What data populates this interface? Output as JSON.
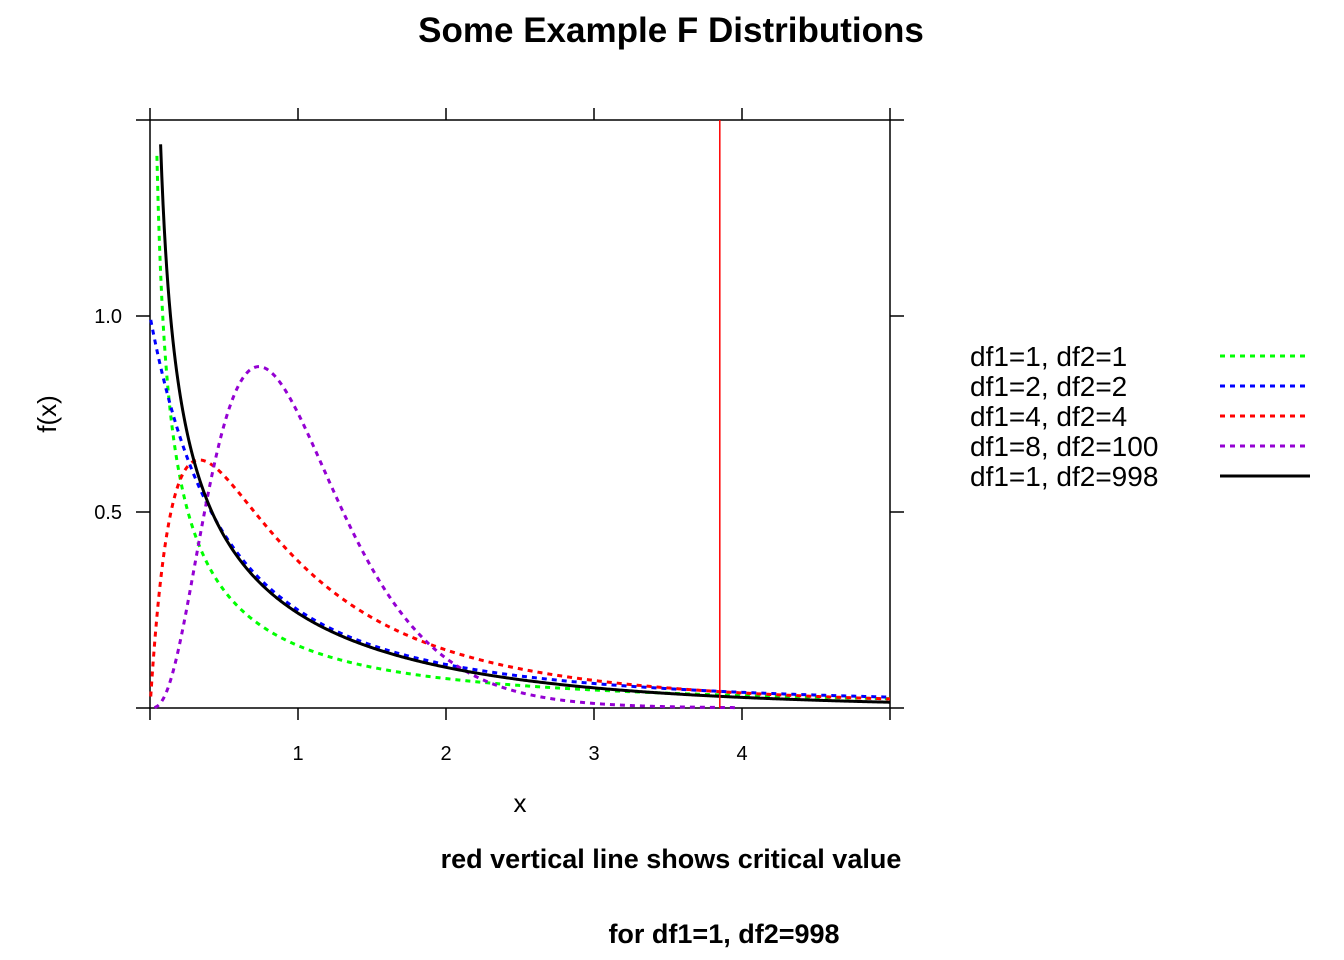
{
  "chart_data": {
    "type": "line",
    "title": "Some Example F Distributions",
    "xlabel": "x",
    "ylabel": "f(x)",
    "xlim": [
      0,
      5
    ],
    "ylim": [
      0,
      1.5
    ],
    "x_ticks": [
      1,
      2,
      3,
      4
    ],
    "x_tick_labels": [
      "1",
      "2",
      "3",
      "4"
    ],
    "y_ticks": [
      0.5,
      1.0
    ],
    "y_tick_labels": [
      "0.5",
      "1.0"
    ],
    "grid": false,
    "legend_position": "right",
    "series": [
      {
        "name": "df1=1, df2=1",
        "df1": 1,
        "df2": 1,
        "color": "#00ff00",
        "style": "dotted"
      },
      {
        "name": "df1=2, df2=2",
        "df1": 2,
        "df2": 2,
        "color": "#0000ff",
        "style": "dotted"
      },
      {
        "name": "df1=4, df2=4",
        "df1": 4,
        "df2": 4,
        "color": "#ff0000",
        "style": "dotted"
      },
      {
        "name": "df1=8, df2=100",
        "df1": 8,
        "df2": 100,
        "color": "#9400d3",
        "style": "dotted"
      },
      {
        "name": "df1=1, df2=998",
        "df1": 1,
        "df2": 998,
        "color": "#000000",
        "style": "solid"
      }
    ],
    "critical_value": {
      "x": 3.85,
      "color": "#ff0000"
    },
    "captions": [
      "red vertical line shows critical value",
      "for df1=1, df2=998"
    ]
  }
}
